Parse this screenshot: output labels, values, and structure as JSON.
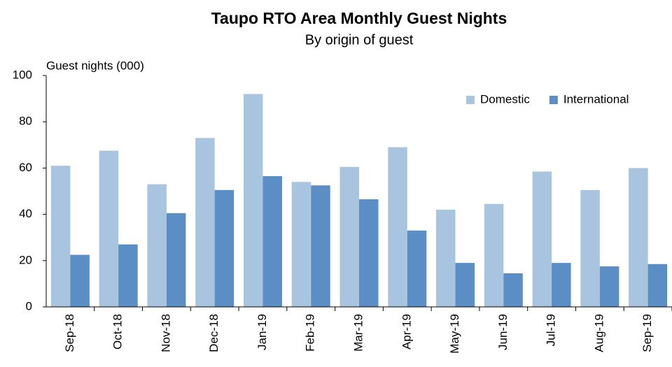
{
  "chart_data": {
    "type": "bar",
    "title": "Taupo RTO Area Monthly Guest Nights",
    "subtitle": "By origin of guest",
    "y_label": "Guest nights (000)",
    "categories": [
      "Sep-18",
      "Oct-18",
      "Nov-18",
      "Dec-18",
      "Jan-19",
      "Feb-19",
      "Mar-19",
      "Apr-19",
      "May-19",
      "Jun-19",
      "Jul-19",
      "Aug-19",
      "Sep-19"
    ],
    "series": [
      {
        "name": "Domestic",
        "color": "#a9c4de",
        "values": [
          61,
          67.5,
          53,
          73,
          92,
          54,
          60.5,
          69,
          42,
          44.5,
          58.5,
          50.5,
          60
        ]
      },
      {
        "name": "International",
        "color": "#5b8ec4",
        "values": [
          22.5,
          27,
          40.5,
          50.5,
          56.5,
          52.5,
          46.5,
          33,
          19,
          14.5,
          19,
          17.5,
          18.5
        ]
      }
    ],
    "ylim": [
      0,
      100
    ],
    "yticks": [
      0,
      20,
      40,
      60,
      80,
      100
    ],
    "grid": false,
    "legend": "top-right"
  }
}
